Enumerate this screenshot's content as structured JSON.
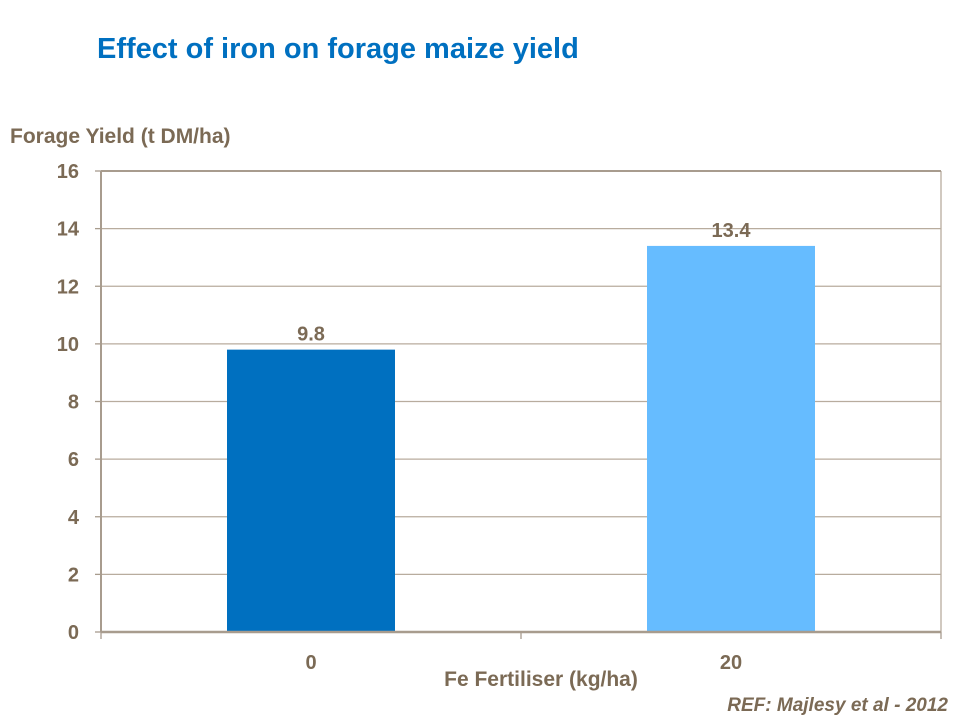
{
  "chart_data": {
    "type": "bar",
    "title": "Effect of iron on forage maize yield",
    "xlabel": "Fe Fertiliser (kg/ha)",
    "ylabel": "Forage Yield (t DM/ha)",
    "categories": [
      "0",
      "20"
    ],
    "values": [
      9.8,
      13.4
    ],
    "data_labels": [
      "9.8",
      "13.4"
    ],
    "ylim": [
      0,
      16
    ],
    "yticks": [
      "0",
      "2",
      "4",
      "6",
      "8",
      "10",
      "12",
      "14",
      "16"
    ],
    "grid": true,
    "legend": "none",
    "colors": [
      "#0070C0",
      "#66BCFF"
    ],
    "annotation": "REF: Majlesy et al - 2012"
  }
}
